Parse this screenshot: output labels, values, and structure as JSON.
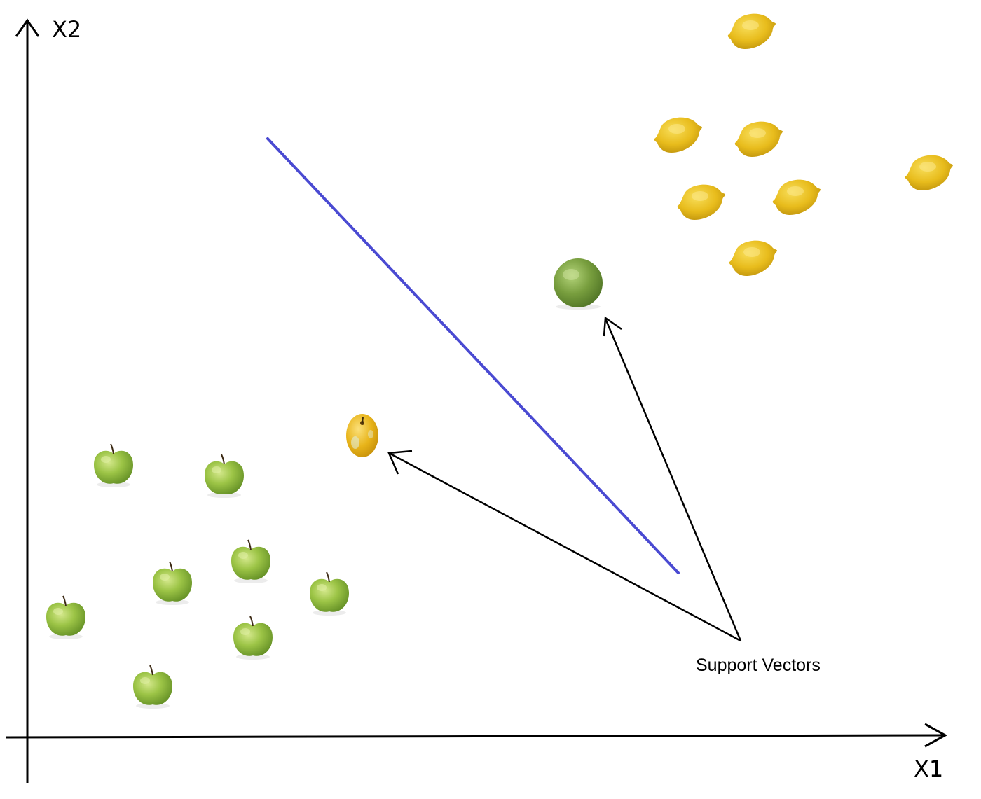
{
  "axes": {
    "x_label": "X1",
    "y_label": "X2"
  },
  "annotation": {
    "text": "Support Vectors"
  },
  "colors": {
    "hyperplane": "#4a4ad2",
    "axis": "#000000",
    "arrow": "#000000",
    "apple_body": "#8cb83c",
    "apple_highlight": "#c8e07a",
    "apple_shadow": "#5e8a22",
    "lemon_body": "#e6b81a",
    "lemon_highlight": "#f6d84a",
    "lemon_shadow": "#b88c0a",
    "lime_body": "#6e9a3a",
    "lime_highlight": "#a4c86a",
    "support_apple_body": "#e8b41a"
  },
  "icons": {
    "apple": "green-apple-icon",
    "lemon": "lemon-icon",
    "lime": "lime-icon",
    "support_apple": "yellow-apple-icon"
  }
}
